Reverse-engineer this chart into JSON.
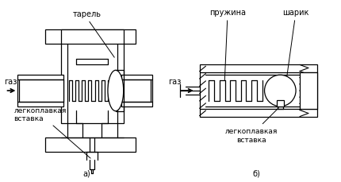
{
  "bg_color": "#ffffff",
  "line_color": "#000000",
  "label_a": "а)",
  "label_b": "б)",
  "text_tarel": "тарель",
  "text_prujina": "пружина",
  "text_sharik": "шарик",
  "text_legkopl_a": "легкоплавкая\nвставка",
  "text_legkopl_b": "легкоплавкая\nвставка",
  "text_gaz": "газ",
  "font_size": 7
}
